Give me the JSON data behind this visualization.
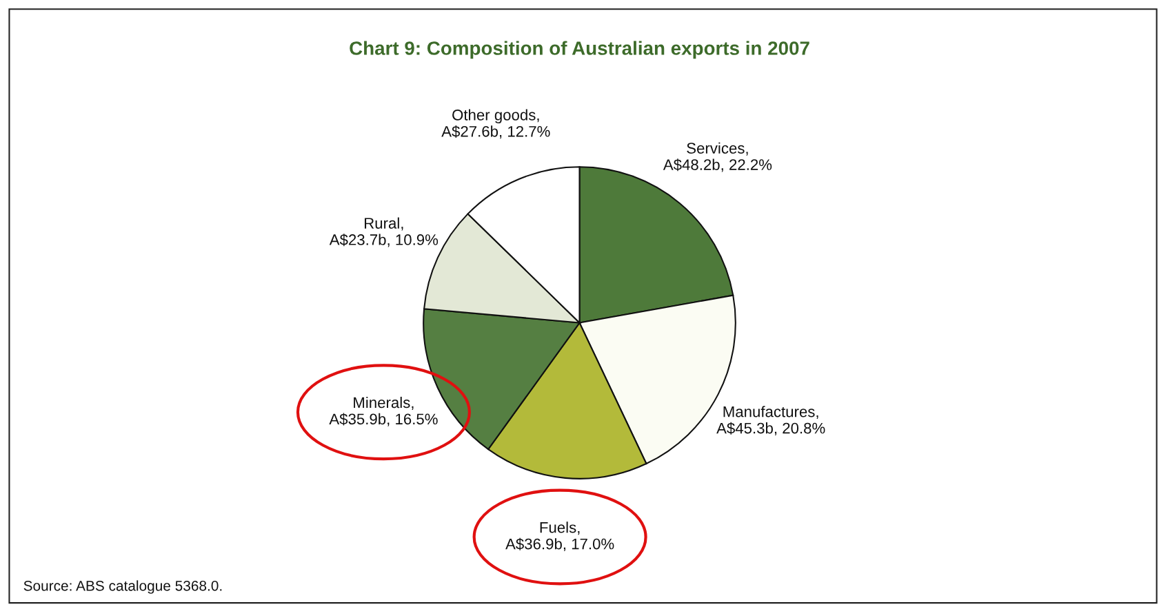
{
  "chart_data": {
    "type": "pie",
    "title": "Chart 9: Composition of Australian exports in 2007",
    "categories": [
      "Services,\nA$48.2b, 22.2%",
      "Manufactures,\nA$45.3b, 20.8%",
      "Fuels,\nA$36.9b, 17.0%",
      "Minerals,\nA$35.9b, 16.5%",
      "Rural,\nA$23.7b, 10.9%",
      "Other goods,\nA$27.6b, 12.7%"
    ],
    "values": [
      22.2,
      20.8,
      17.0,
      16.5,
      10.9,
      12.7
    ],
    "colors": [
      "#4e7a3a",
      "#fbfcf3",
      "#b3ba3a",
      "#557f42",
      "#e3e8d6",
      "#ffffff"
    ],
    "annotations": [
      "Source: ABS catalogue 5368.0."
    ]
  }
}
